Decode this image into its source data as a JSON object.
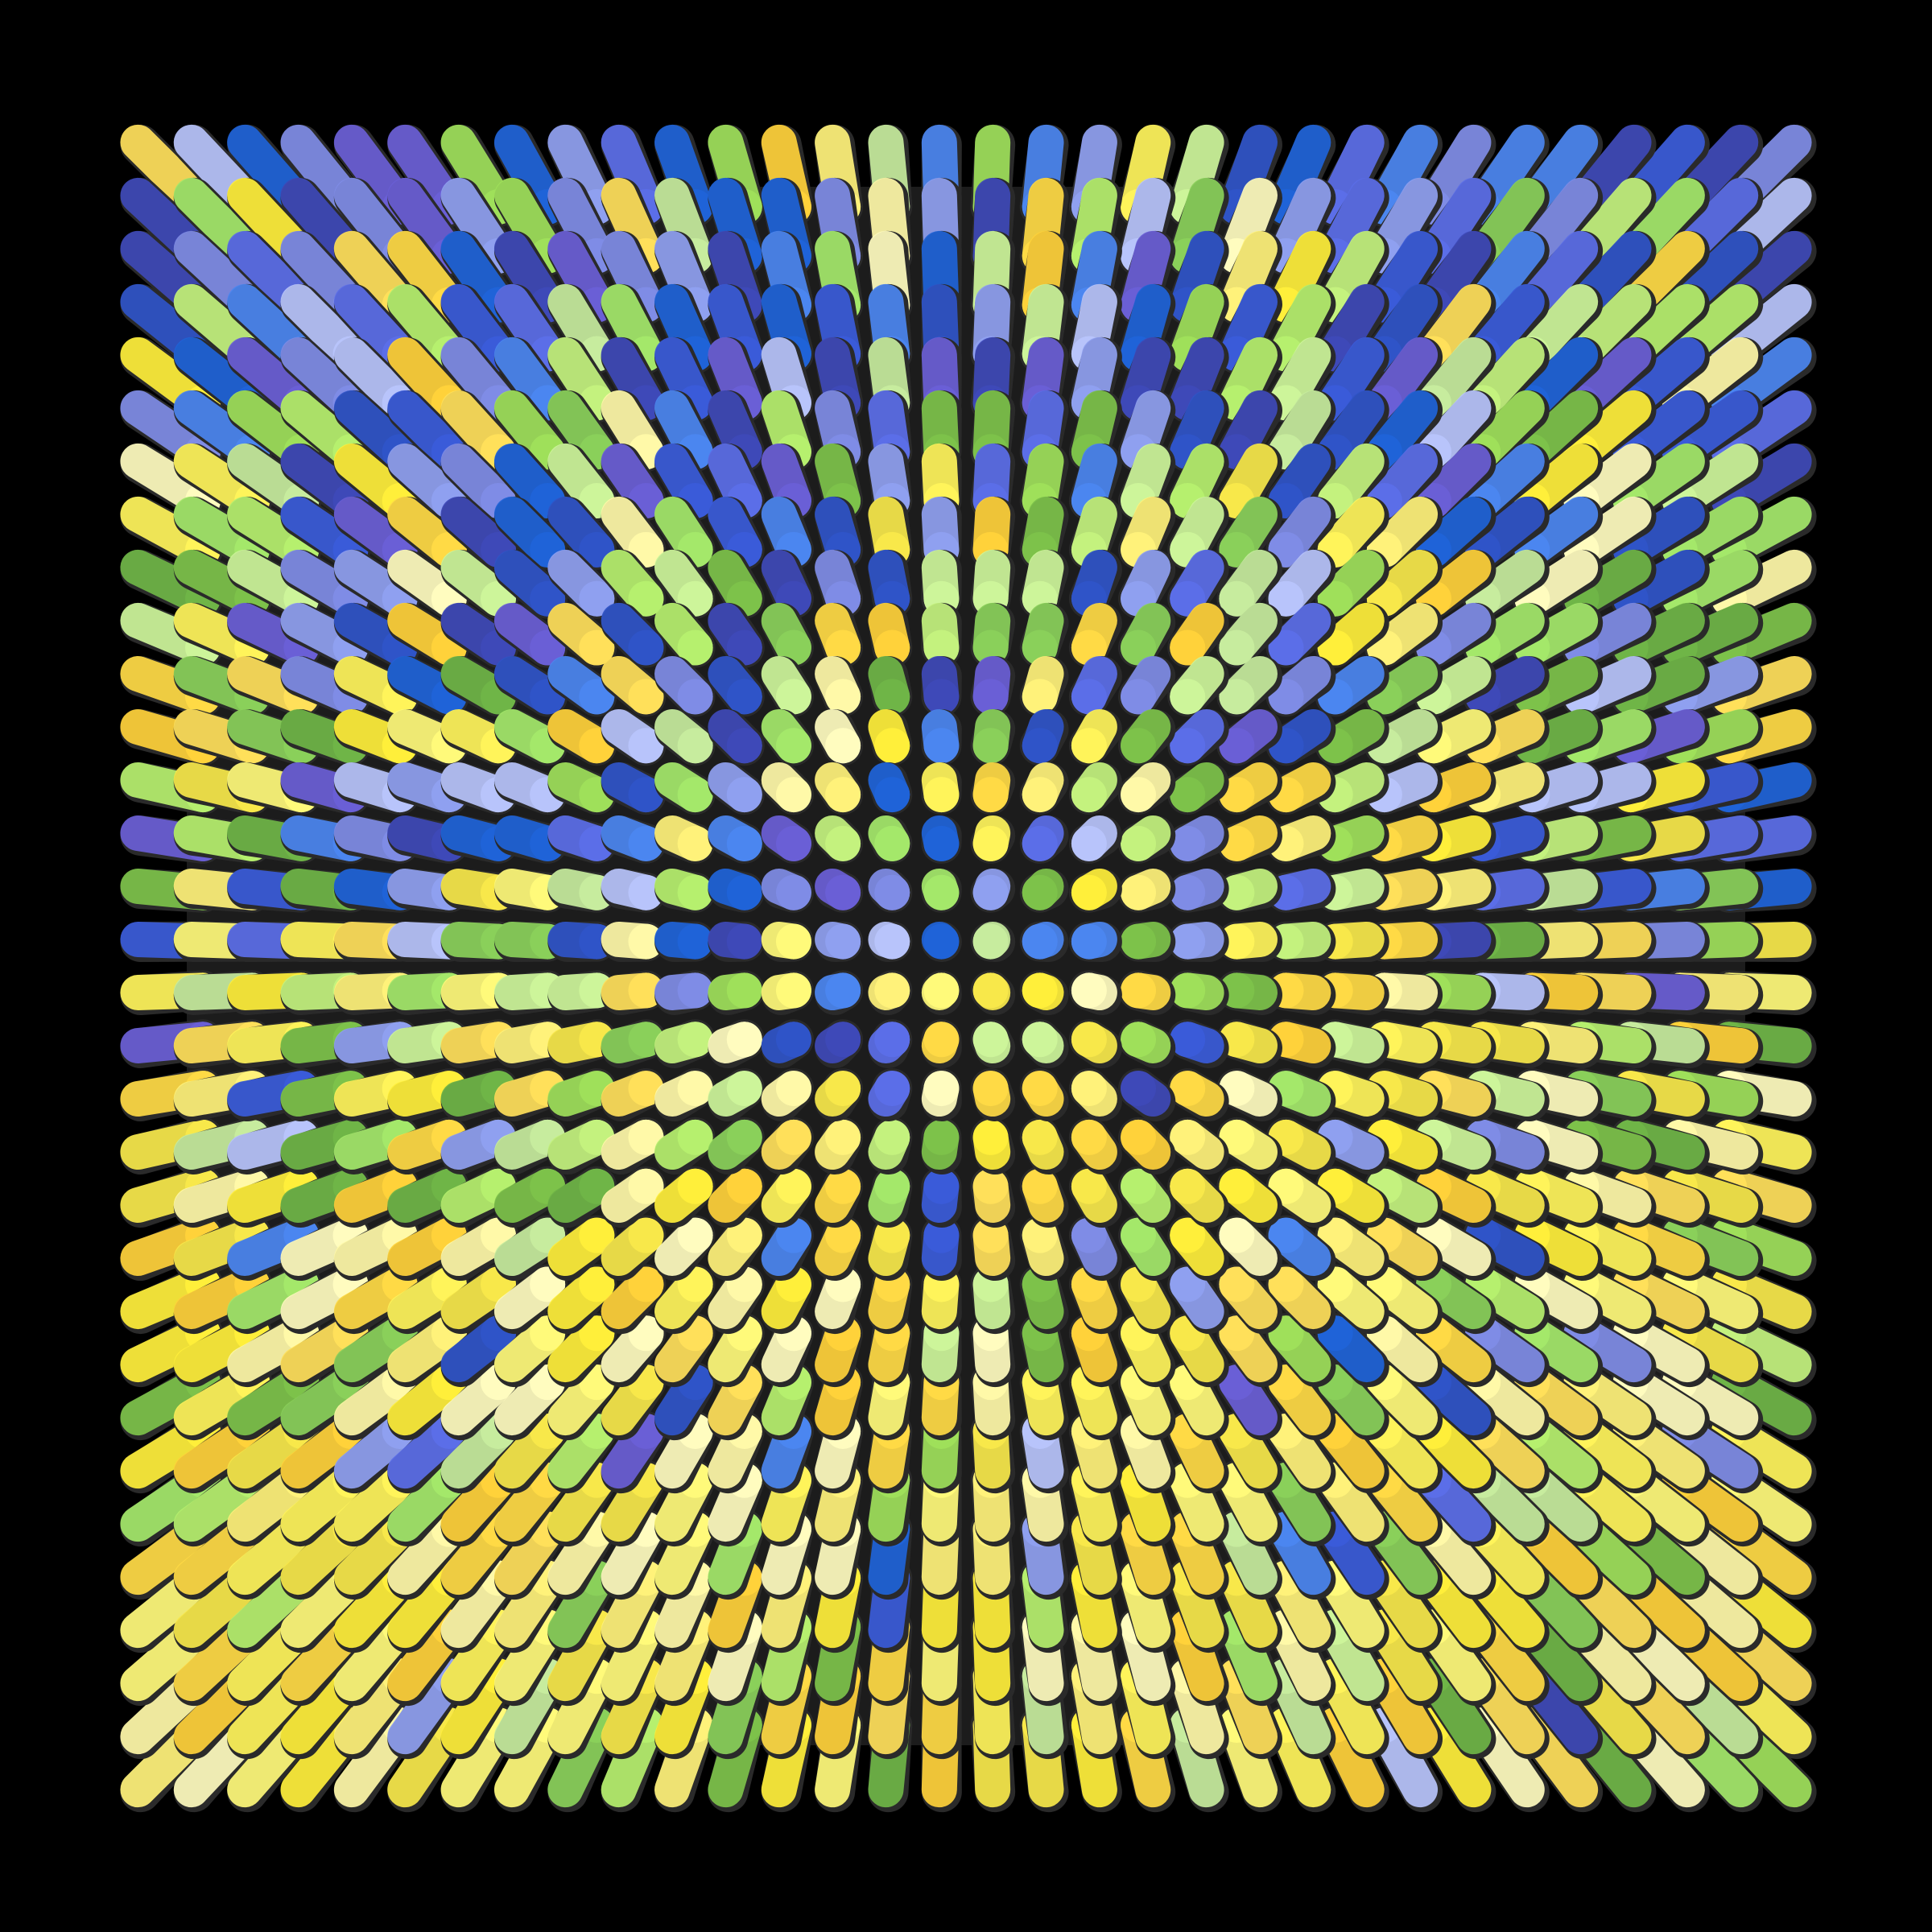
{
  "artwork": {
    "kind": "generative radial peg-grid",
    "background_color": "#000000",
    "panel_color": "#1c1c1c",
    "grid_columns": 32,
    "grid_rows": 32,
    "cool_palette": [
      "#3a5bd9",
      "#5b6ee8",
      "#8fa0f0",
      "#b8c4fb",
      "#6a5fd6",
      "#2f54c8",
      "#1f63d8",
      "#4b86f0",
      "#3e49b8",
      "#7f8ce6"
    ],
    "green_palette": [
      "#7dc24a",
      "#9fe05a",
      "#b6f06e",
      "#cdf59a",
      "#6fb547",
      "#a4e86a",
      "#8ad05a",
      "#c4f27e",
      "#c7ec9e"
    ],
    "warm_palette": [
      "#fff45a",
      "#ffef3a",
      "#fffa7a",
      "#fff9a8",
      "#ffd23a",
      "#ffe05a",
      "#ffda45",
      "#fffcbf",
      "#fff27a",
      "#f8e84a"
    ],
    "top_cool_fraction": 0.62,
    "bottom_warm_fraction": 0.82
  }
}
